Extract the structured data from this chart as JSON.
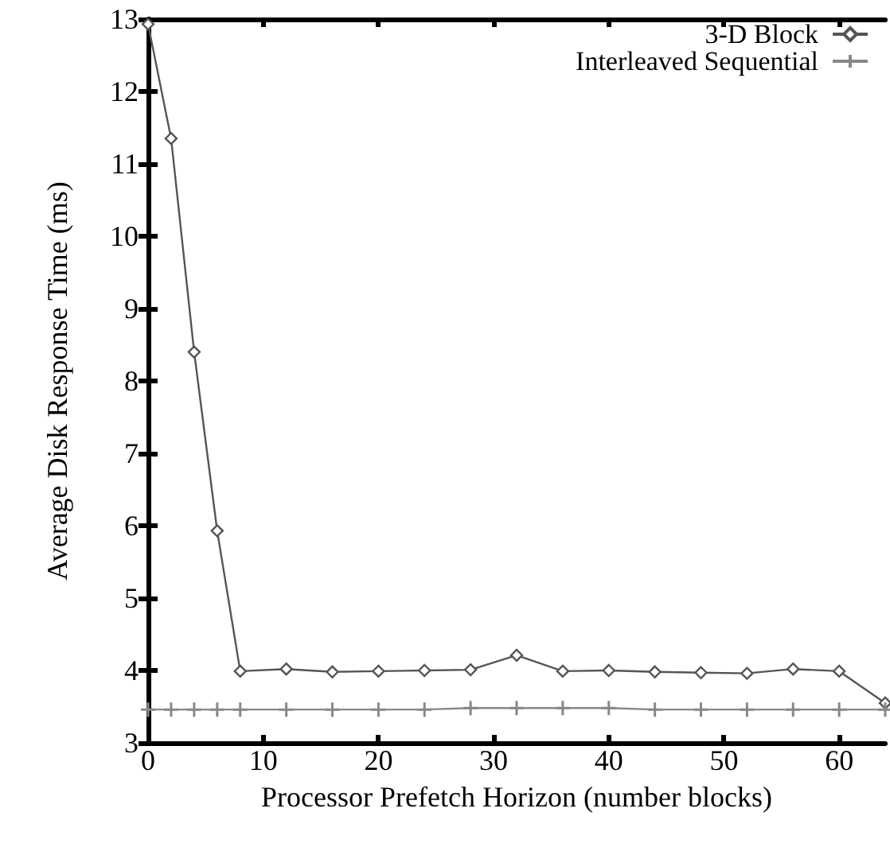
{
  "chart_data": {
    "type": "line",
    "xlabel": "Processor Prefetch Horizon (number blocks)",
    "ylabel": "Average Disk Response Time (ms)",
    "xlim": [
      0,
      64
    ],
    "xticks": [
      0,
      10,
      20,
      30,
      40,
      50,
      60
    ],
    "ylim": [
      3,
      13
    ],
    "yticks": [
      3,
      4,
      5,
      6,
      7,
      8,
      9,
      10,
      11,
      12,
      13
    ],
    "grid": false,
    "legend": "top right",
    "line_style": "solid",
    "series": [
      {
        "name": "3-D Block",
        "color": "#555555",
        "marker": "diamond",
        "x": [
          0,
          2,
          4,
          6,
          8,
          12,
          16,
          20,
          24,
          28,
          32,
          36,
          40,
          44,
          48,
          52,
          56,
          60,
          64
        ],
        "values": [
          12.93,
          11.35,
          8.4,
          5.93,
          3.99,
          4.02,
          3.98,
          3.99,
          4.0,
          4.01,
          4.21,
          3.99,
          4.0,
          3.98,
          3.97,
          3.96,
          4.02,
          3.99,
          3.55
        ]
      },
      {
        "name": "Interleaved Sequential",
        "color": "#888888",
        "marker": "cross",
        "x": [
          0,
          2,
          4,
          6,
          8,
          12,
          16,
          20,
          24,
          28,
          32,
          36,
          40,
          44,
          48,
          52,
          56,
          60,
          64
        ],
        "values": [
          3.46,
          3.46,
          3.46,
          3.46,
          3.46,
          3.46,
          3.46,
          3.46,
          3.46,
          3.48,
          3.48,
          3.48,
          3.48,
          3.46,
          3.46,
          3.46,
          3.46,
          3.46,
          3.46
        ]
      }
    ]
  }
}
